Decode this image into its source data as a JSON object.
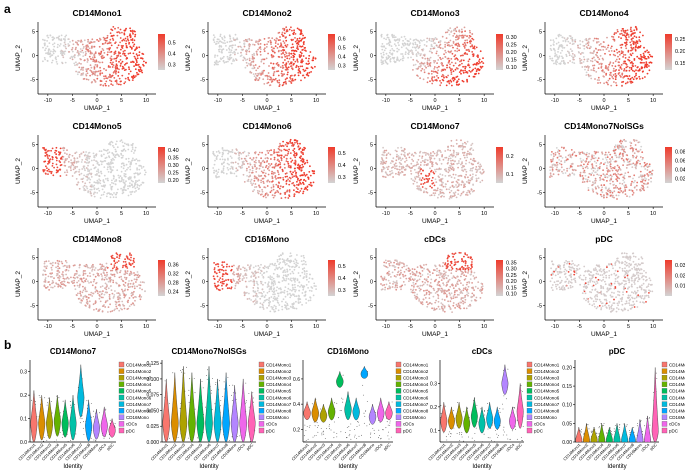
{
  "figure": {
    "panel_a_label": "a",
    "panel_b_label": "b"
  },
  "chart_data": [
    {
      "type": "scatter",
      "panel": "a",
      "subtype": "umap-feature-plot",
      "xlabel": "UMAP_1",
      "ylabel": "UMAP_2",
      "xticks": [
        -10,
        -5,
        0,
        5,
        10
      ],
      "yticks": [
        -5,
        0,
        5
      ],
      "xlim": [
        -12,
        12
      ],
      "ylim": [
        -8,
        7
      ],
      "color_low": "#d3d3d3",
      "color_high": "#ef3b2c",
      "plots": [
        {
          "title": "CD14Mono1",
          "scale_ticks": [
            "0.5",
            "0.4",
            "0.3"
          ],
          "scale_range": [
            0.25,
            0.58
          ],
          "high_region": "right-body"
        },
        {
          "title": "CD14Mono2",
          "scale_ticks": [
            "0.6",
            "0.5",
            "0.4",
            "0.3"
          ],
          "scale_range": [
            0.25,
            0.65
          ],
          "high_region": "right-body"
        },
        {
          "title": "CD14Mono3",
          "scale_ticks": [
            "0.30",
            "0.25",
            "0.20",
            "0.15",
            "0.10"
          ],
          "scale_range": [
            0.08,
            0.32
          ],
          "high_region": "lower-body"
        },
        {
          "title": "CD14Mono4",
          "scale_ticks": [
            "0.25",
            "0.20",
            "0.15"
          ],
          "scale_range": [
            0.12,
            0.27
          ],
          "high_region": "right-body"
        },
        {
          "title": "CD14Mono5",
          "scale_ticks": [
            "0.40",
            "0.35",
            "0.30",
            "0.25",
            "0.20"
          ],
          "scale_range": [
            0.18,
            0.42
          ],
          "high_region": "left-tip"
        },
        {
          "title": "CD14Mono6",
          "scale_ticks": [
            "0.5",
            "0.4",
            "0.3"
          ],
          "scale_range": [
            0.25,
            0.55
          ],
          "high_region": "right-body"
        },
        {
          "title": "CD14Mono7",
          "scale_ticks": [
            "0.2",
            "0.1"
          ],
          "scale_range": [
            0.05,
            0.25
          ],
          "high_region": "center-notch"
        },
        {
          "title": "CD14Mono7NoISGs",
          "scale_ticks": [
            "0.08",
            "0.06",
            "0.04",
            "0.02"
          ],
          "scale_range": [
            0.01,
            0.09
          ],
          "high_region": "diffuse"
        },
        {
          "title": "CD14Mono8",
          "scale_ticks": [
            "0.36",
            "0.32",
            "0.28",
            "0.24"
          ],
          "scale_range": [
            0.22,
            0.38
          ],
          "high_region": "top-right"
        },
        {
          "title": "CD16Mono",
          "scale_ticks": [
            "0.5",
            "0.4",
            "0.3"
          ],
          "scale_range": [
            0.25,
            0.55
          ],
          "high_region": "left-tip"
        },
        {
          "title": "cDCs",
          "scale_ticks": [
            "0.35",
            "0.30",
            "0.25",
            "0.20",
            "0.15",
            "0.10"
          ],
          "scale_range": [
            0.08,
            0.37
          ],
          "high_region": "top-right"
        },
        {
          "title": "pDC",
          "scale_ticks": [
            "0.03",
            "0.02",
            "0.01"
          ],
          "scale_range": [
            0.0,
            0.035
          ],
          "high_region": "sparse"
        }
      ]
    },
    {
      "type": "violin",
      "panel": "b",
      "xlabel": "Identity",
      "categories": [
        "CD14Mono1",
        "CD14Mono2",
        "CD14Mono3",
        "CD14Mono4",
        "CD14Mono5",
        "CD14Mono6",
        "CD14Mono7",
        "CD14Mono8",
        "CD16Mono",
        "cDCs",
        "pDC"
      ],
      "category_colors": [
        "#f8766d",
        "#db8e00",
        "#aea200",
        "#64b200",
        "#00bd5c",
        "#00c1a7",
        "#00bade",
        "#00a6ff",
        "#b385ff",
        "#ef67eb",
        "#ff63b6"
      ],
      "plots": [
        {
          "title": "CD14Mono7",
          "yticks": [
            "0.3",
            "0.2",
            "0.1",
            "0.0"
          ],
          "ylim": [
            0,
            0.35
          ],
          "medians": [
            0.08,
            0.08,
            0.08,
            0.09,
            0.08,
            0.08,
            0.19,
            0.07,
            0.06,
            0.07,
            0.05
          ],
          "maxes": [
            0.22,
            0.2,
            0.19,
            0.2,
            0.18,
            0.2,
            0.33,
            0.18,
            0.14,
            0.15,
            0.1
          ],
          "legend": [
            "CD14Mono1",
            "CD14Mono2",
            "CD14Mono3",
            "CD14Mono4",
            "CD14Mono5",
            "CD14Mono6",
            "CD14Mono7",
            "CD14Mono8",
            "CD16Mono",
            "cDCs",
            "pDC"
          ]
        },
        {
          "title": "CD14Mono7NoISGs",
          "yticks": [
            "0.125",
            "0.100",
            "0.075",
            "0.050",
            "0.025",
            "0.000"
          ],
          "ylim": [
            0,
            0.13
          ],
          "medians": [
            0.03,
            0.03,
            0.03,
            0.03,
            0.03,
            0.03,
            0.03,
            0.03,
            0.03,
            0.03,
            0.03
          ],
          "maxes": [
            0.1,
            0.11,
            0.12,
            0.11,
            0.1,
            0.12,
            0.1,
            0.11,
            0.09,
            0.1,
            0.08
          ],
          "legend": [
            "CD14Mono1",
            "CD14Mono2",
            "CD14Mono3",
            "CD14Mono4",
            "CD14Mono5",
            "CD14Mono6",
            "CD14Mono7",
            "CD14Mono8",
            "CD16Mono",
            "cDCs",
            "pDC"
          ]
        },
        {
          "title": "CD16Mono",
          "yticks": [
            "0.6",
            "0.4",
            "0.2"
          ],
          "ylim": [
            0.1,
            0.75
          ],
          "medians": [
            0.33,
            0.33,
            0.31,
            0.34,
            0.58,
            0.36,
            0.34,
            0.64,
            0.3,
            0.33,
            0.33
          ],
          "maxes": [
            0.42,
            0.45,
            0.4,
            0.45,
            0.66,
            0.5,
            0.45,
            0.7,
            0.4,
            0.45,
            0.42
          ],
          "legend": [
            "CD14Mono1",
            "CD14Mono2",
            "CD14Mono3",
            "CD14Mono4",
            "CD14Mono5",
            "CD14Mono6",
            "CD14Mono7",
            "CD14Mono8",
            "CD16Mono",
            "cDCs",
            "pDC"
          ]
        },
        {
          "title": "cDCs",
          "yticks": [
            "0.3",
            "0.2",
            "0.1"
          ],
          "ylim": [
            0.05,
            0.4
          ],
          "medians": [
            0.14,
            0.14,
            0.15,
            0.13,
            0.16,
            0.13,
            0.15,
            0.14,
            0.3,
            0.14,
            0.18
          ],
          "maxes": [
            0.22,
            0.2,
            0.22,
            0.2,
            0.24,
            0.2,
            0.22,
            0.2,
            0.38,
            0.2,
            0.3
          ],
          "legend": [
            "CD14Mono1",
            "CD14Mono2",
            "CD14Mono3",
            "CD14Mono4",
            "CD14Mono5",
            "CD14Mono6",
            "CD14Mono7",
            "CD14Mono8",
            "CD16Mono",
            "cDCs",
            "pDC"
          ]
        },
        {
          "title": "pDC",
          "yticks": [
            "0.20",
            "0.15",
            "0.10",
            "0.05",
            "0.00"
          ],
          "ylim": [
            0,
            0.22
          ],
          "medians": [
            0.005,
            0.005,
            0.005,
            0.005,
            0.005,
            0.005,
            0.005,
            0.005,
            0.005,
            0.005,
            0.03
          ],
          "maxes": [
            0.04,
            0.05,
            0.04,
            0.05,
            0.04,
            0.05,
            0.05,
            0.04,
            0.06,
            0.07,
            0.2
          ],
          "legend": [
            "CD14Mono1",
            "CD14Mono2",
            "CD14Mono3",
            "CD14Mono4",
            "CD14Mono5",
            "CD14Mono6",
            "CD14Mono7",
            "CD14Mono8",
            "CD16Mono",
            "cDCs",
            "pDC"
          ]
        }
      ]
    }
  ]
}
